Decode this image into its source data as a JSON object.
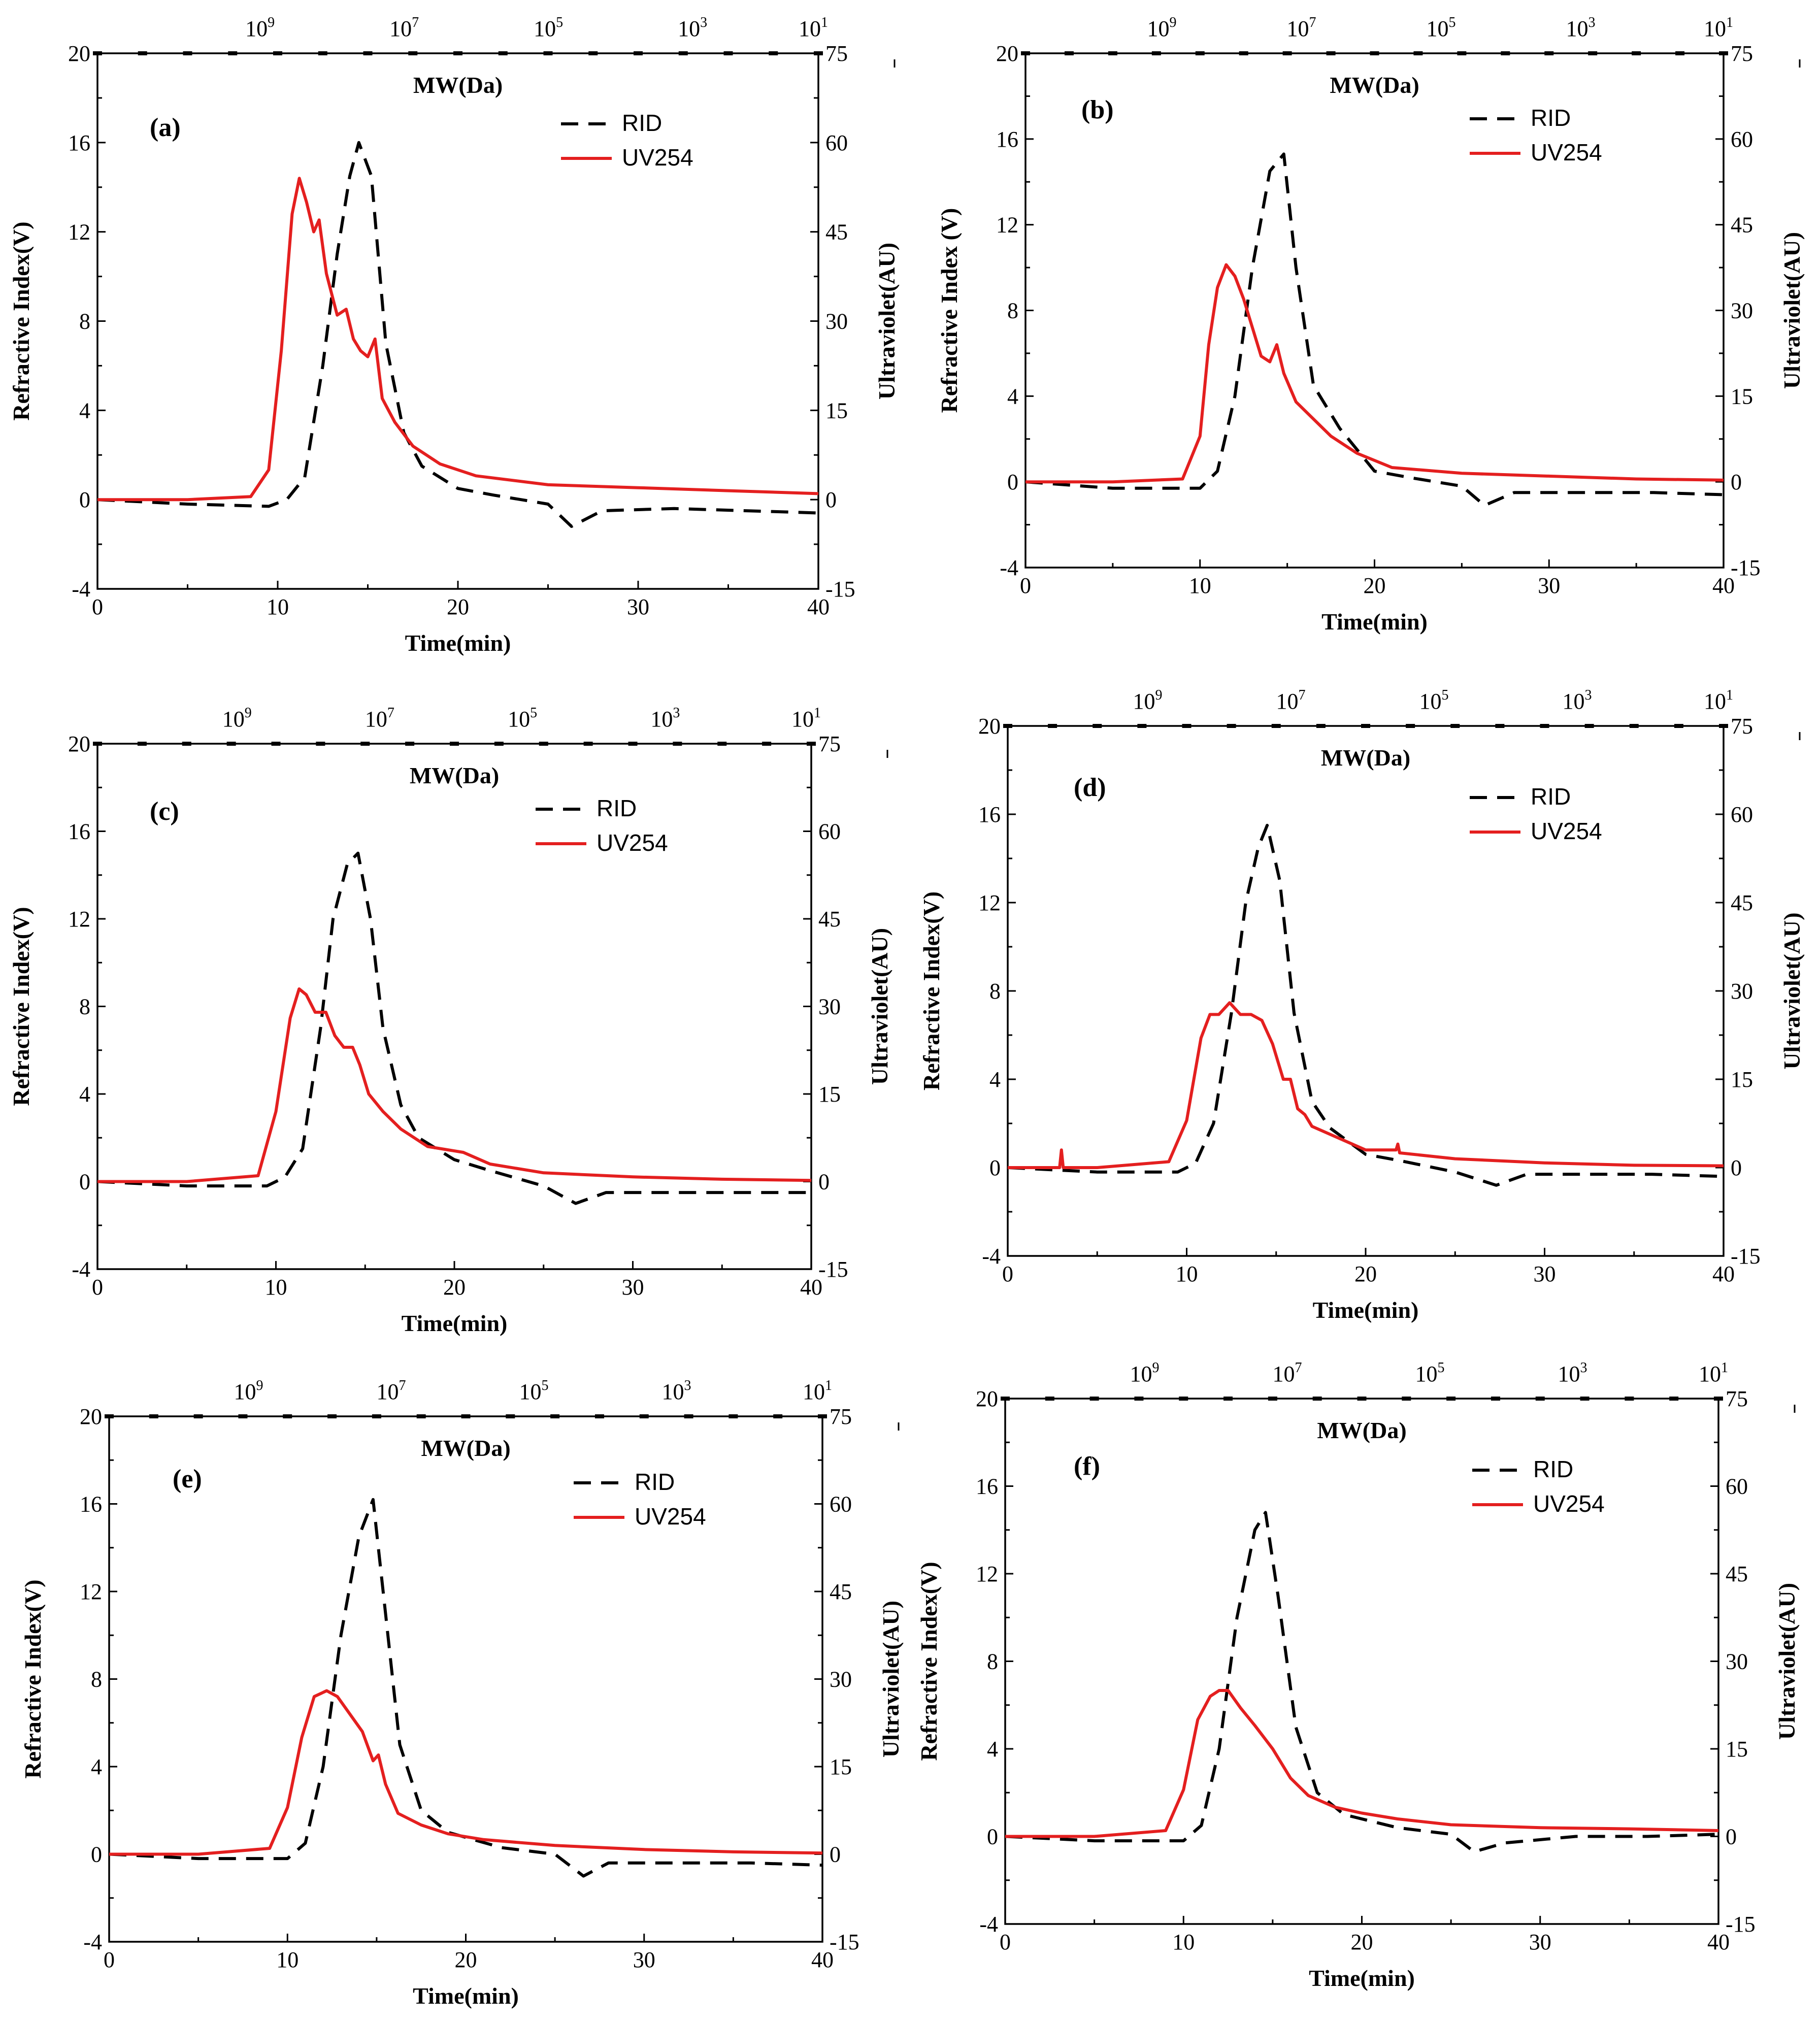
{
  "colors": {
    "rid": "#000000",
    "uv": "#e41f1f",
    "frame": "#000000"
  },
  "axes": {
    "x_title": "Time(min)",
    "y_left_title": "Refractive Index(V)",
    "y_left_title_b": "Refractive Index (V)",
    "y_right_title": "Ultraviolet(AU)",
    "top_title": "MW(Da)",
    "x_ticks": [
      "0",
      "10",
      "20",
      "30",
      "40"
    ],
    "y_left_ticks": [
      "-4",
      "0",
      "4",
      "8",
      "12",
      "16",
      "20"
    ],
    "y_right_ticks": [
      "-15",
      "0",
      "15",
      "30",
      "45",
      "60",
      "75"
    ],
    "top_bases": [
      "10",
      "10",
      "10",
      "10",
      "10"
    ],
    "top_exponents": [
      "9",
      "7",
      "5",
      "3",
      "1"
    ]
  },
  "legend": {
    "rid": "RID",
    "uv": "UV254"
  },
  "chart_data": [
    {
      "type": "line",
      "panel": "(a)",
      "xlim": [
        0,
        40
      ],
      "ylim_left": [
        -4,
        20
      ],
      "ylim_right": [
        -15,
        75
      ],
      "top_axis_mw_at_time": [
        [
          9.3,
          "10^9"
        ],
        [
          17.3,
          "10^7"
        ],
        [
          25.3,
          "10^5"
        ],
        [
          33.3,
          "10^3"
        ],
        [
          40,
          "10^1"
        ]
      ],
      "series": [
        {
          "name": "RID",
          "axis": "left",
          "x": [
            0,
            5,
            9.5,
            10.5,
            11.5,
            12.5,
            13.3,
            14,
            14.5,
            15.2,
            16,
            17,
            18,
            20,
            22,
            25,
            26.3,
            28,
            32,
            36,
            40
          ],
          "y": [
            0,
            -0.2,
            -0.3,
            0,
            1,
            6,
            11,
            14.5,
            16,
            14.5,
            7,
            3,
            1.5,
            0.5,
            0.2,
            -0.2,
            -1.2,
            -0.5,
            -0.4,
            -0.5,
            -0.6
          ]
        },
        {
          "name": "UV254",
          "axis": "right",
          "x": [
            0,
            5,
            8.5,
            9.5,
            10.2,
            10.8,
            11.2,
            11.6,
            12,
            12.3,
            12.7,
            13.3,
            13.8,
            14.2,
            14.6,
            15,
            15.4,
            15.8,
            16.5,
            17.5,
            19,
            21,
            25,
            30,
            35,
            40
          ],
          "y": [
            0,
            0,
            0.5,
            5,
            25,
            48,
            54,
            50,
            45,
            47,
            38,
            31,
            32,
            27,
            25,
            24,
            27,
            17,
            13,
            9,
            6,
            4,
            2.5,
            2,
            1.5,
            1
          ]
        }
      ]
    },
    {
      "type": "line",
      "panel": "(b)",
      "xlim": [
        0,
        40
      ],
      "ylim_left": [
        -4,
        20
      ],
      "ylim_right": [
        -15,
        75
      ],
      "top_axis_mw_at_time": [
        [
          8.1,
          "10^9"
        ],
        [
          16.1,
          "10^7"
        ],
        [
          24.1,
          "10^5"
        ],
        [
          32.1,
          "10^3"
        ],
        [
          40,
          "10^1"
        ]
      ],
      "series": [
        {
          "name": "RID",
          "axis": "left",
          "x": [
            0,
            5,
            10,
            11,
            12,
            13,
            14,
            14.8,
            15.5,
            16.5,
            18,
            20,
            22,
            25,
            26.3,
            28,
            32,
            36,
            40
          ],
          "y": [
            0,
            -0.3,
            -0.3,
            0.5,
            4,
            10,
            14.5,
            15.3,
            10,
            4.5,
            2.5,
            0.5,
            0.2,
            -0.2,
            -1.1,
            -0.5,
            -0.5,
            -0.5,
            -0.6
          ]
        },
        {
          "name": "UV254",
          "axis": "right",
          "x": [
            0,
            5,
            9,
            10,
            10.5,
            11,
            11.5,
            12,
            12.5,
            13,
            13.5,
            14,
            14.4,
            14.8,
            15.5,
            16.5,
            17.5,
            19,
            21,
            25,
            30,
            35,
            40
          ],
          "y": [
            0,
            0,
            0.5,
            8,
            24,
            34,
            38,
            36,
            32,
            27,
            22,
            21,
            24,
            19,
            14,
            11,
            8,
            5,
            2.5,
            1.5,
            1,
            0.5,
            0.3
          ]
        }
      ]
    },
    {
      "type": "line",
      "panel": "(c)",
      "xlim": [
        0,
        40
      ],
      "ylim_left": [
        -4,
        20
      ],
      "ylim_right": [
        -15,
        75
      ],
      "top_axis_mw_at_time": [
        [
          8.1,
          "10^9"
        ],
        [
          16.1,
          "10^7"
        ],
        [
          24.1,
          "10^5"
        ],
        [
          32.1,
          "10^3"
        ],
        [
          40,
          "10^1"
        ]
      ],
      "series": [
        {
          "name": "RID",
          "axis": "left",
          "x": [
            0,
            5,
            9.5,
            10.5,
            11.5,
            12.5,
            13.2,
            14,
            14.6,
            15.3,
            16,
            17,
            18,
            20,
            22,
            25,
            26.8,
            28.5,
            32,
            36,
            40
          ],
          "y": [
            0,
            -0.2,
            -0.2,
            0.2,
            1.5,
            7,
            12,
            14.5,
            15,
            12,
            7,
            3.5,
            2,
            1,
            0.5,
            -0.2,
            -1,
            -0.5,
            -0.5,
            -0.5,
            -0.5
          ]
        },
        {
          "name": "UV254",
          "axis": "right",
          "x": [
            0,
            5,
            9,
            10,
            10.8,
            11.3,
            11.7,
            12.2,
            12.8,
            13.3,
            13.8,
            14.3,
            14.7,
            15.2,
            16,
            17,
            18.5,
            20.5,
            22,
            25,
            30,
            35,
            40
          ],
          "y": [
            0,
            0,
            1,
            12,
            28,
            33,
            32,
            29,
            29,
            25,
            23,
            23,
            20,
            15,
            12,
            9,
            6,
            5,
            3,
            1.5,
            0.8,
            0.4,
            0.2
          ]
        }
      ]
    },
    {
      "type": "line",
      "panel": "(d)",
      "xlim": [
        0,
        40
      ],
      "ylim_left": [
        -4,
        20
      ],
      "ylim_right": [
        -15,
        75
      ],
      "top_axis_mw_at_time": [
        [
          8.1,
          "10^9"
        ],
        [
          16.1,
          "10^7"
        ],
        [
          24.1,
          "10^5"
        ],
        [
          32.1,
          "10^3"
        ],
        [
          40,
          "10^1"
        ]
      ],
      "series": [
        {
          "name": "RID",
          "axis": "left",
          "x": [
            0,
            5,
            9.5,
            10.5,
            11.5,
            12.5,
            13.3,
            14,
            14.5,
            15.2,
            16,
            17,
            18,
            20,
            22,
            25,
            27.3,
            29,
            32,
            36,
            40
          ],
          "y": [
            0,
            -0.2,
            -0.2,
            0.2,
            2,
            7,
            12,
            14.5,
            15.5,
            13,
            7,
            3,
            1.8,
            0.6,
            0.3,
            -0.2,
            -0.8,
            -0.3,
            -0.3,
            -0.3,
            -0.4
          ]
        },
        {
          "name": "UV254",
          "axis": "right",
          "x": [
            0,
            2.9,
            3.0,
            3.1,
            5,
            9,
            10,
            10.8,
            11.3,
            11.8,
            12.4,
            13,
            13.6,
            14.2,
            14.8,
            15.4,
            15.8,
            16.2,
            16.6,
            17,
            18.5,
            20,
            21.7,
            21.8,
            21.9,
            25,
            30,
            35,
            40
          ],
          "y": [
            0,
            0,
            3,
            0,
            0,
            1,
            8,
            22,
            26,
            26,
            28,
            26,
            26,
            25,
            21,
            15,
            15,
            10,
            9,
            7,
            5,
            3,
            3,
            4,
            2.5,
            1.5,
            0.8,
            0.4,
            0.3
          ]
        }
      ]
    },
    {
      "type": "line",
      "panel": "(e)",
      "xlim": [
        0,
        40
      ],
      "ylim_left": [
        -4,
        20
      ],
      "ylim_right": [
        -15,
        75
      ],
      "top_axis_mw_at_time": [
        [
          8.1,
          "10^9"
        ],
        [
          16.1,
          "10^7"
        ],
        [
          24.1,
          "10^5"
        ],
        [
          32.1,
          "10^3"
        ],
        [
          40,
          "10^1"
        ]
      ],
      "series": [
        {
          "name": "RID",
          "axis": "left",
          "x": [
            0,
            5,
            10,
            11,
            12,
            13,
            14,
            14.8,
            15.5,
            16.3,
            17.5,
            19,
            22,
            25,
            26.6,
            28,
            32,
            36,
            40
          ],
          "y": [
            0,
            -0.2,
            -0.2,
            0.5,
            4,
            10,
            14.5,
            16.2,
            11,
            5,
            2,
            1,
            0.3,
            0,
            -1,
            -0.4,
            -0.4,
            -0.4,
            -0.5
          ]
        },
        {
          "name": "UV254",
          "axis": "right",
          "x": [
            0,
            5,
            9,
            10,
            10.8,
            11.5,
            12.2,
            12.8,
            13.5,
            14.2,
            14.8,
            15.1,
            15.5,
            16.2,
            17.5,
            19,
            21,
            25,
            30,
            35,
            40
          ],
          "y": [
            0,
            0,
            1,
            8,
            20,
            27,
            28,
            27,
            24,
            21,
            16,
            17,
            12,
            7,
            5,
            3.5,
            2.5,
            1.5,
            0.8,
            0.4,
            0.2
          ]
        }
      ]
    },
    {
      "type": "line",
      "panel": "(f)",
      "xlim": [
        0,
        40
      ],
      "ylim_left": [
        -4,
        20
      ],
      "ylim_right": [
        -15,
        75
      ],
      "top_axis_mw_at_time": [
        [
          8.1,
          "10^9"
        ],
        [
          16.1,
          "10^7"
        ],
        [
          24.1,
          "10^5"
        ],
        [
          32.1,
          "10^3"
        ],
        [
          40,
          "10^1"
        ]
      ],
      "series": [
        {
          "name": "RID",
          "axis": "left",
          "x": [
            0,
            5,
            10,
            11,
            12,
            13,
            14,
            14.6,
            15.3,
            16.3,
            17.5,
            19,
            22,
            25,
            26.3,
            28,
            32,
            36,
            40
          ],
          "y": [
            0,
            -0.2,
            -0.2,
            0.5,
            4,
            10,
            14,
            14.8,
            11,
            5,
            2,
            1,
            0.4,
            0.1,
            -0.7,
            -0.3,
            0,
            0,
            0.1
          ]
        },
        {
          "name": "UV254",
          "axis": "right",
          "x": [
            0,
            5,
            9,
            10,
            10.8,
            11.5,
            12,
            12.5,
            13.2,
            14,
            15,
            16,
            17,
            18.5,
            20,
            22,
            25,
            30,
            35,
            40
          ],
          "y": [
            0,
            0,
            1,
            8,
            20,
            24,
            25,
            25,
            22,
            19,
            15,
            10,
            7,
            5,
            4,
            3,
            2,
            1.5,
            1.3,
            1
          ]
        }
      ]
    }
  ]
}
